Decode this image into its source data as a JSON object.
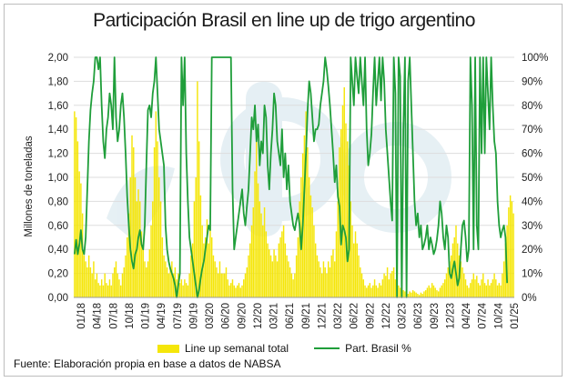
{
  "title": "Participación Brasil en line up de trigo argentino",
  "source": "Fuente: Elaboración propia en base a datos de NABSA",
  "colors": {
    "bars": "#f5e60a",
    "line": "#1f9e3a",
    "grid": "#dddddd",
    "watermark": "#e3eef3"
  },
  "chart_data": {
    "type": "bar",
    "x_tick_labels": [
      "01/18",
      "04/18",
      "07/18",
      "10/18",
      "01/19",
      "04/19",
      "07/19",
      "09/19",
      "03/20",
      "06/20",
      "09/20",
      "12/20",
      "03/21",
      "06/21",
      "09/21",
      "12/21",
      "03/22",
      "06/22",
      "09/22",
      "12/22",
      "03/23",
      "06/23",
      "09/23",
      "12/23",
      "04/24",
      "07/24",
      "10/24",
      "01/25"
    ],
    "ylabel": "Millones de toneladas",
    "ylim": [
      0,
      2.0
    ],
    "y_ticks": [
      "0,00",
      "0,20",
      "0,40",
      "0,60",
      "0,80",
      "1,00",
      "1,20",
      "1,40",
      "1,60",
      "1,80",
      "2,00"
    ],
    "y2lim": [
      0,
      100
    ],
    "y2_ticks": [
      "0%",
      "10%",
      "20%",
      "30%",
      "40%",
      "50%",
      "60%",
      "70%",
      "80%",
      "90%",
      "100%"
    ],
    "legend_position": "bottom",
    "grid": true,
    "series": [
      {
        "name": "Line up semanal total",
        "type": "bar",
        "axis": "left",
        "values": [
          1.55,
          1.5,
          1.3,
          1.05,
          0.95,
          0.7,
          0.35,
          0.3,
          0.25,
          0.35,
          0.25,
          0.2,
          0.3,
          0.15,
          0.2,
          0.12,
          0.1,
          0.15,
          0.1,
          0.2,
          0.12,
          0.1,
          0.15,
          0.1,
          0.2,
          0.25,
          0.3,
          0.2,
          0.15,
          0.1,
          0.2,
          0.25,
          0.35,
          0.5,
          0.7,
          1.0,
          1.35,
          1.25,
          1.0,
          0.8,
          0.9,
          0.8,
          0.55,
          0.4,
          0.3,
          0.25,
          0.3,
          0.4,
          0.6,
          0.8,
          1.25,
          1.55,
          1.3,
          1.0,
          0.8,
          0.5,
          0.35,
          0.3,
          0.25,
          0.2,
          0.25,
          0.3,
          0.2,
          0.25,
          0.15,
          0.2,
          0.12,
          0.15,
          0.1,
          0.15,
          0.12,
          0.1,
          0.2,
          0.35,
          0.45,
          0.8,
          1.0,
          1.8,
          1.3,
          0.85,
          0.6,
          0.45,
          0.5,
          0.65,
          0.45,
          0.6,
          0.5,
          0.35,
          0.3,
          0.25,
          0.2,
          0.3,
          0.2,
          0.2,
          0.2,
          0.25,
          0.15,
          0.1,
          0.12,
          0.15,
          0.1,
          0.08,
          0.1,
          0.12,
          0.08,
          0.1,
          0.15,
          0.2,
          0.25,
          0.35,
          0.45,
          0.6,
          0.75,
          1.05,
          1.3,
          0.95,
          0.8,
          0.7,
          0.6,
          0.75,
          0.55,
          0.45,
          0.4,
          0.35,
          0.3,
          0.4,
          0.35,
          0.3,
          0.45,
          0.5,
          0.55,
          0.6,
          0.45,
          0.35,
          0.3,
          0.25,
          0.2,
          0.15,
          0.2,
          0.35,
          0.5,
          0.8,
          1.0,
          1.2,
          1.35,
          1.55,
          1.25,
          1.0,
          0.85,
          0.75,
          0.6,
          0.45,
          0.35,
          0.3,
          0.25,
          0.2,
          0.3,
          0.25,
          0.2,
          0.3,
          0.25,
          0.35,
          0.4,
          0.3,
          0.55,
          0.8,
          1.25,
          1.4,
          1.6,
          1.75,
          1.45,
          1.3,
          1.1,
          0.8,
          0.6,
          0.45,
          0.55,
          0.45,
          0.35,
          0.25,
          0.2,
          0.15,
          0.1,
          0.08,
          0.1,
          0.12,
          0.08,
          0.1,
          0.15,
          0.1,
          0.08,
          0.12,
          0.1,
          0.15,
          0.2,
          0.18,
          0.25,
          0.15,
          0.2,
          0.22,
          0.25,
          0.15,
          0.12,
          0.1,
          0.08,
          0.05,
          0.06,
          0.05,
          0.04,
          0.03,
          0.05,
          0.04,
          0.06,
          0.05,
          0.04,
          0.03,
          0.02,
          0.04,
          0.03,
          0.05,
          0.06,
          0.08,
          0.1,
          0.08,
          0.12,
          0.1,
          0.08,
          0.06,
          0.05,
          0.08,
          0.1,
          0.12,
          0.15,
          0.2,
          0.25,
          0.3,
          0.35,
          0.45,
          0.5,
          0.6,
          0.45,
          0.35,
          0.3,
          0.25,
          0.2,
          0.15,
          0.1,
          0.08,
          0.12,
          0.15,
          0.2,
          0.15,
          0.18,
          0.12,
          0.1,
          0.15,
          0.2,
          0.12,
          0.1,
          0.15,
          0.1,
          0.12,
          0.15,
          0.2,
          0.15,
          0.1,
          0.12,
          0.1,
          0.2,
          0.3,
          0.45,
          0.6,
          0.75,
          0.85,
          0.8,
          0.7
        ],
        "color": "#f5e60a"
      },
      {
        "name": "Part. Brasil %",
        "type": "line",
        "axis": "right",
        "values": [
          18,
          24,
          18,
          22,
          28,
          20,
          18,
          25,
          45,
          65,
          78,
          85,
          90,
          100,
          100,
          95,
          100,
          80,
          65,
          58,
          70,
          75,
          85,
          80,
          70,
          100,
          75,
          65,
          70,
          80,
          85,
          75,
          60,
          42,
          30,
          20,
          15,
          12,
          18,
          20,
          25,
          28,
          22,
          20,
          30,
          55,
          78,
          80,
          75,
          85,
          90,
          100,
          85,
          70,
          65,
          60,
          55,
          30,
          20,
          15,
          12,
          10,
          8,
          5,
          0,
          5,
          10,
          100,
          80,
          100,
          60,
          40,
          25,
          20,
          15,
          10,
          5,
          0,
          3,
          8,
          12,
          15,
          20,
          25,
          30,
          28,
          100,
          100,
          100,
          100,
          100,
          100,
          100,
          100,
          100,
          100,
          100,
          100,
          100,
          45,
          20,
          25,
          30,
          35,
          40,
          45,
          35,
          30,
          38,
          45,
          60,
          75,
          70,
          80,
          65,
          72,
          55,
          65,
          60,
          80,
          75,
          55,
          45,
          60,
          70,
          85,
          80,
          65,
          60,
          55,
          70,
          50,
          60,
          45,
          55,
          40,
          35,
          30,
          28,
          32,
          35,
          30,
          20,
          30,
          45,
          60,
          78,
          90,
          85,
          75,
          65,
          70,
          70,
          72,
          80,
          85,
          90,
          100,
          95,
          88,
          80,
          70,
          60,
          48,
          55,
          42,
          38,
          22,
          30,
          28,
          25,
          15,
          20,
          100,
          90,
          80,
          100,
          92,
          85,
          100,
          90,
          80,
          100,
          70,
          55,
          60,
          68,
          85,
          100,
          80,
          90,
          100,
          82,
          100,
          90,
          70,
          60,
          50,
          40,
          32,
          100,
          85,
          0,
          100,
          92,
          0,
          70,
          100,
          0,
          90,
          100,
          80,
          60,
          40,
          30,
          35,
          25,
          30,
          20,
          22,
          25,
          30,
          20,
          25,
          22,
          18,
          20,
          24,
          30,
          40,
          35,
          25,
          20,
          30,
          25,
          10,
          8,
          12,
          15,
          10,
          5,
          8,
          20,
          30,
          32,
          25,
          15,
          20,
          100,
          80,
          20,
          100,
          30,
          20,
          100,
          60,
          100,
          60,
          100,
          85,
          70,
          100,
          80,
          65,
          60,
          40,
          30,
          25,
          28,
          30,
          25,
          6
        ],
        "color": "#1f9e3a"
      }
    ]
  }
}
